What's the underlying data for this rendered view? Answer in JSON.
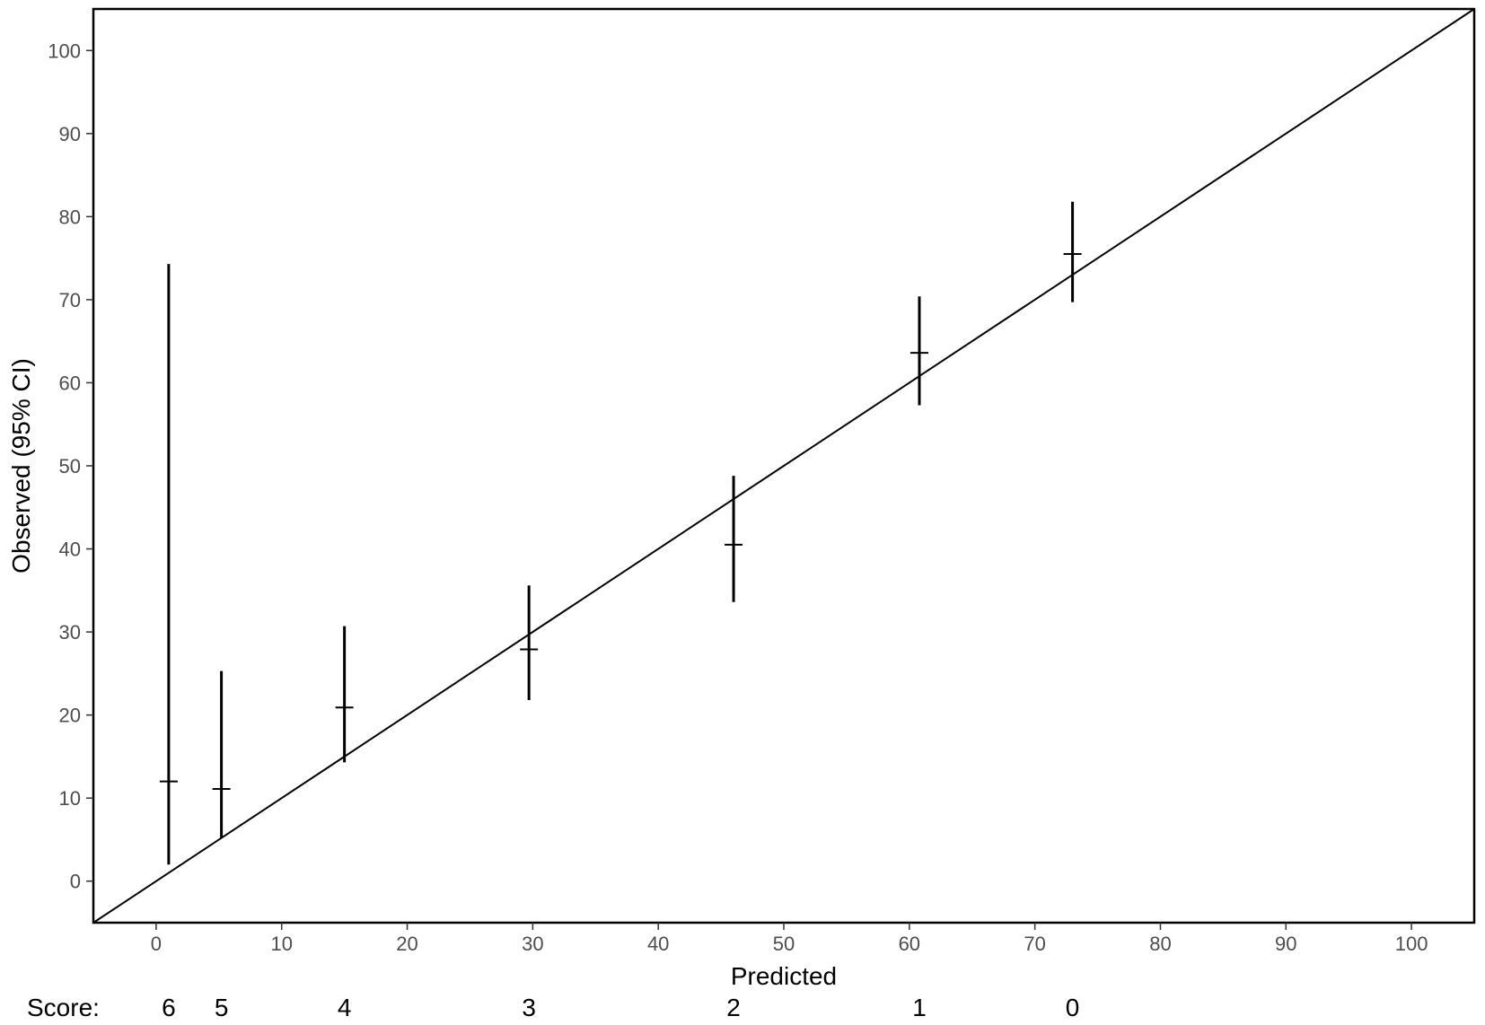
{
  "chart_data": {
    "type": "scatter",
    "xlabel": "Predicted",
    "ylabel": "Observed (95% CI)",
    "xlim": [
      -5,
      105
    ],
    "ylim": [
      -5,
      105
    ],
    "xticks": [
      0,
      10,
      20,
      30,
      40,
      50,
      60,
      70,
      80,
      90,
      100
    ],
    "yticks": [
      0,
      10,
      20,
      30,
      40,
      50,
      60,
      70,
      80,
      90,
      100
    ],
    "grid": false,
    "reference_line": {
      "from": [
        -5,
        -5
      ],
      "to": [
        105,
        105
      ]
    },
    "points": [
      {
        "score": "6",
        "predicted": 1.0,
        "observed": 12.0,
        "ci_low": 2.0,
        "ci_high": 74.3
      },
      {
        "score": "5",
        "predicted": 5.2,
        "observed": 11.1,
        "ci_low": 5.2,
        "ci_high": 25.3
      },
      {
        "score": "4",
        "predicted": 15.0,
        "observed": 20.9,
        "ci_low": 14.3,
        "ci_high": 30.7
      },
      {
        "score": "3",
        "predicted": 29.7,
        "observed": 27.9,
        "ci_low": 21.8,
        "ci_high": 35.6
      },
      {
        "score": "2",
        "predicted": 46.0,
        "observed": 40.5,
        "ci_low": 33.6,
        "ci_high": 48.8
      },
      {
        "score": "1",
        "predicted": 60.8,
        "observed": 63.6,
        "ci_low": 57.3,
        "ci_high": 70.4
      },
      {
        "score": "0",
        "predicted": 73.0,
        "observed": 75.5,
        "ci_low": 69.7,
        "ci_high": 81.8
      }
    ],
    "score_row_label": "Score:"
  }
}
